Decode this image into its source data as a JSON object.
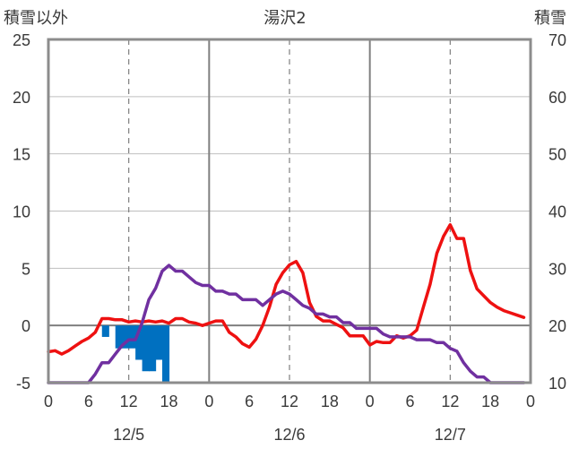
{
  "chart_data": {
    "type": "line",
    "title": "湯沢2",
    "left_axis": {
      "label": "積雪以外",
      "range": [
        -5,
        25
      ],
      "ticks": [
        25,
        20,
        15,
        10,
        5,
        0,
        -5
      ]
    },
    "right_axis": {
      "label": "積雪",
      "range": [
        10,
        70
      ],
      "ticks": [
        70,
        60,
        50,
        40,
        30,
        20,
        10
      ]
    },
    "x_axis": {
      "range": [
        0,
        72
      ],
      "hour_ticks": [
        "0",
        "6",
        "12",
        "18",
        "0",
        "6",
        "12",
        "18",
        "0",
        "6",
        "12",
        "18",
        "0"
      ],
      "day_labels": [
        {
          "label": "12/5",
          "at": 12
        },
        {
          "label": "12/6",
          "at": 36
        },
        {
          "label": "12/7",
          "at": 60
        }
      ],
      "day_boundaries": [
        24,
        48
      ],
      "dashed_gridlines": [
        12,
        36,
        60
      ]
    },
    "grid": true,
    "series": [
      {
        "color": "#ee1111",
        "axis": "left",
        "x": [
          0,
          1,
          2,
          3,
          4,
          5,
          6,
          7,
          8,
          9,
          10,
          11,
          12,
          13,
          14,
          15,
          16,
          17,
          18,
          19,
          20,
          21,
          22,
          23,
          24,
          25,
          26,
          27,
          28,
          29,
          30,
          31,
          32,
          33,
          34,
          35,
          36,
          37,
          38,
          39,
          40,
          41,
          42,
          43,
          44,
          45,
          46,
          47,
          48,
          49,
          50,
          51,
          52,
          53,
          54,
          55,
          56,
          57,
          58,
          59,
          60,
          61,
          62,
          63,
          64,
          65,
          66,
          67,
          68,
          69,
          70,
          71
        ],
        "values": [
          -2.3,
          -2.2,
          -2.5,
          -2.2,
          -1.8,
          -1.4,
          -1.1,
          -0.6,
          0.6,
          0.6,
          0.5,
          0.5,
          0.3,
          0.4,
          0.3,
          0.4,
          0.3,
          0.4,
          0.2,
          0.6,
          0.6,
          0.3,
          0.2,
          0.0,
          0.2,
          0.4,
          0.4,
          -0.6,
          -1.0,
          -1.6,
          -1.9,
          -1.2,
          0.0,
          1.6,
          3.6,
          4.6,
          5.3,
          5.6,
          4.6,
          2.0,
          0.8,
          0.4,
          0.4,
          0.1,
          -0.2,
          -0.9,
          -0.9,
          -0.9,
          -1.7,
          -1.4,
          -1.5,
          -1.5,
          -0.9,
          -1.1,
          -0.9,
          -0.4,
          1.6,
          3.6,
          6.3,
          7.8,
          8.8,
          7.6,
          7.6,
          4.8,
          3.2,
          2.6,
          2.0,
          1.6,
          1.3,
          1.1,
          0.9,
          0.7
        ]
      },
      {
        "color": "#7030a0",
        "axis": "right",
        "x": [
          0,
          1,
          2,
          3,
          4,
          5,
          6,
          7,
          8,
          9,
          10,
          11,
          12,
          13,
          14,
          15,
          16,
          17,
          18,
          19,
          20,
          21,
          22,
          23,
          24,
          25,
          26,
          27,
          28,
          29,
          30,
          31,
          32,
          33,
          34,
          35,
          36,
          37,
          38,
          39,
          40,
          41,
          42,
          43,
          44,
          45,
          46,
          47,
          48,
          49,
          50,
          51,
          52,
          53,
          54,
          55,
          56,
          57,
          58,
          59,
          60,
          61,
          62,
          63,
          64,
          65,
          66,
          67,
          68,
          69,
          70,
          71
        ],
        "values": [
          10,
          10,
          10,
          10,
          10,
          10,
          10,
          11.5,
          13.5,
          13.5,
          15,
          16.5,
          17.5,
          17.5,
          20.5,
          24.5,
          26.5,
          29.5,
          30.5,
          29.5,
          29.5,
          28.5,
          27.5,
          27,
          27,
          26,
          26,
          25.5,
          25.5,
          24.5,
          24.5,
          24.5,
          23.5,
          24.5,
          25.5,
          26,
          25.5,
          24.5,
          23.5,
          23,
          22,
          22,
          21.5,
          21.5,
          20.5,
          20.5,
          19.5,
          19.5,
          19.5,
          19.5,
          18.5,
          18,
          18,
          18,
          18,
          17.5,
          17.5,
          17.5,
          17,
          17,
          16,
          15.5,
          13.5,
          12,
          11,
          11,
          10,
          10,
          10,
          10,
          10,
          10
        ]
      }
    ],
    "bars": {
      "color": "#0070c0",
      "axis": "left",
      "x": [
        8,
        9,
        10,
        11,
        12,
        13,
        14,
        15,
        16,
        17
      ],
      "values": [
        -1.0,
        0.0,
        -2.0,
        -2.0,
        -2.0,
        -3.0,
        -4.0,
        -4.0,
        -3.0,
        -5.0
      ]
    }
  }
}
